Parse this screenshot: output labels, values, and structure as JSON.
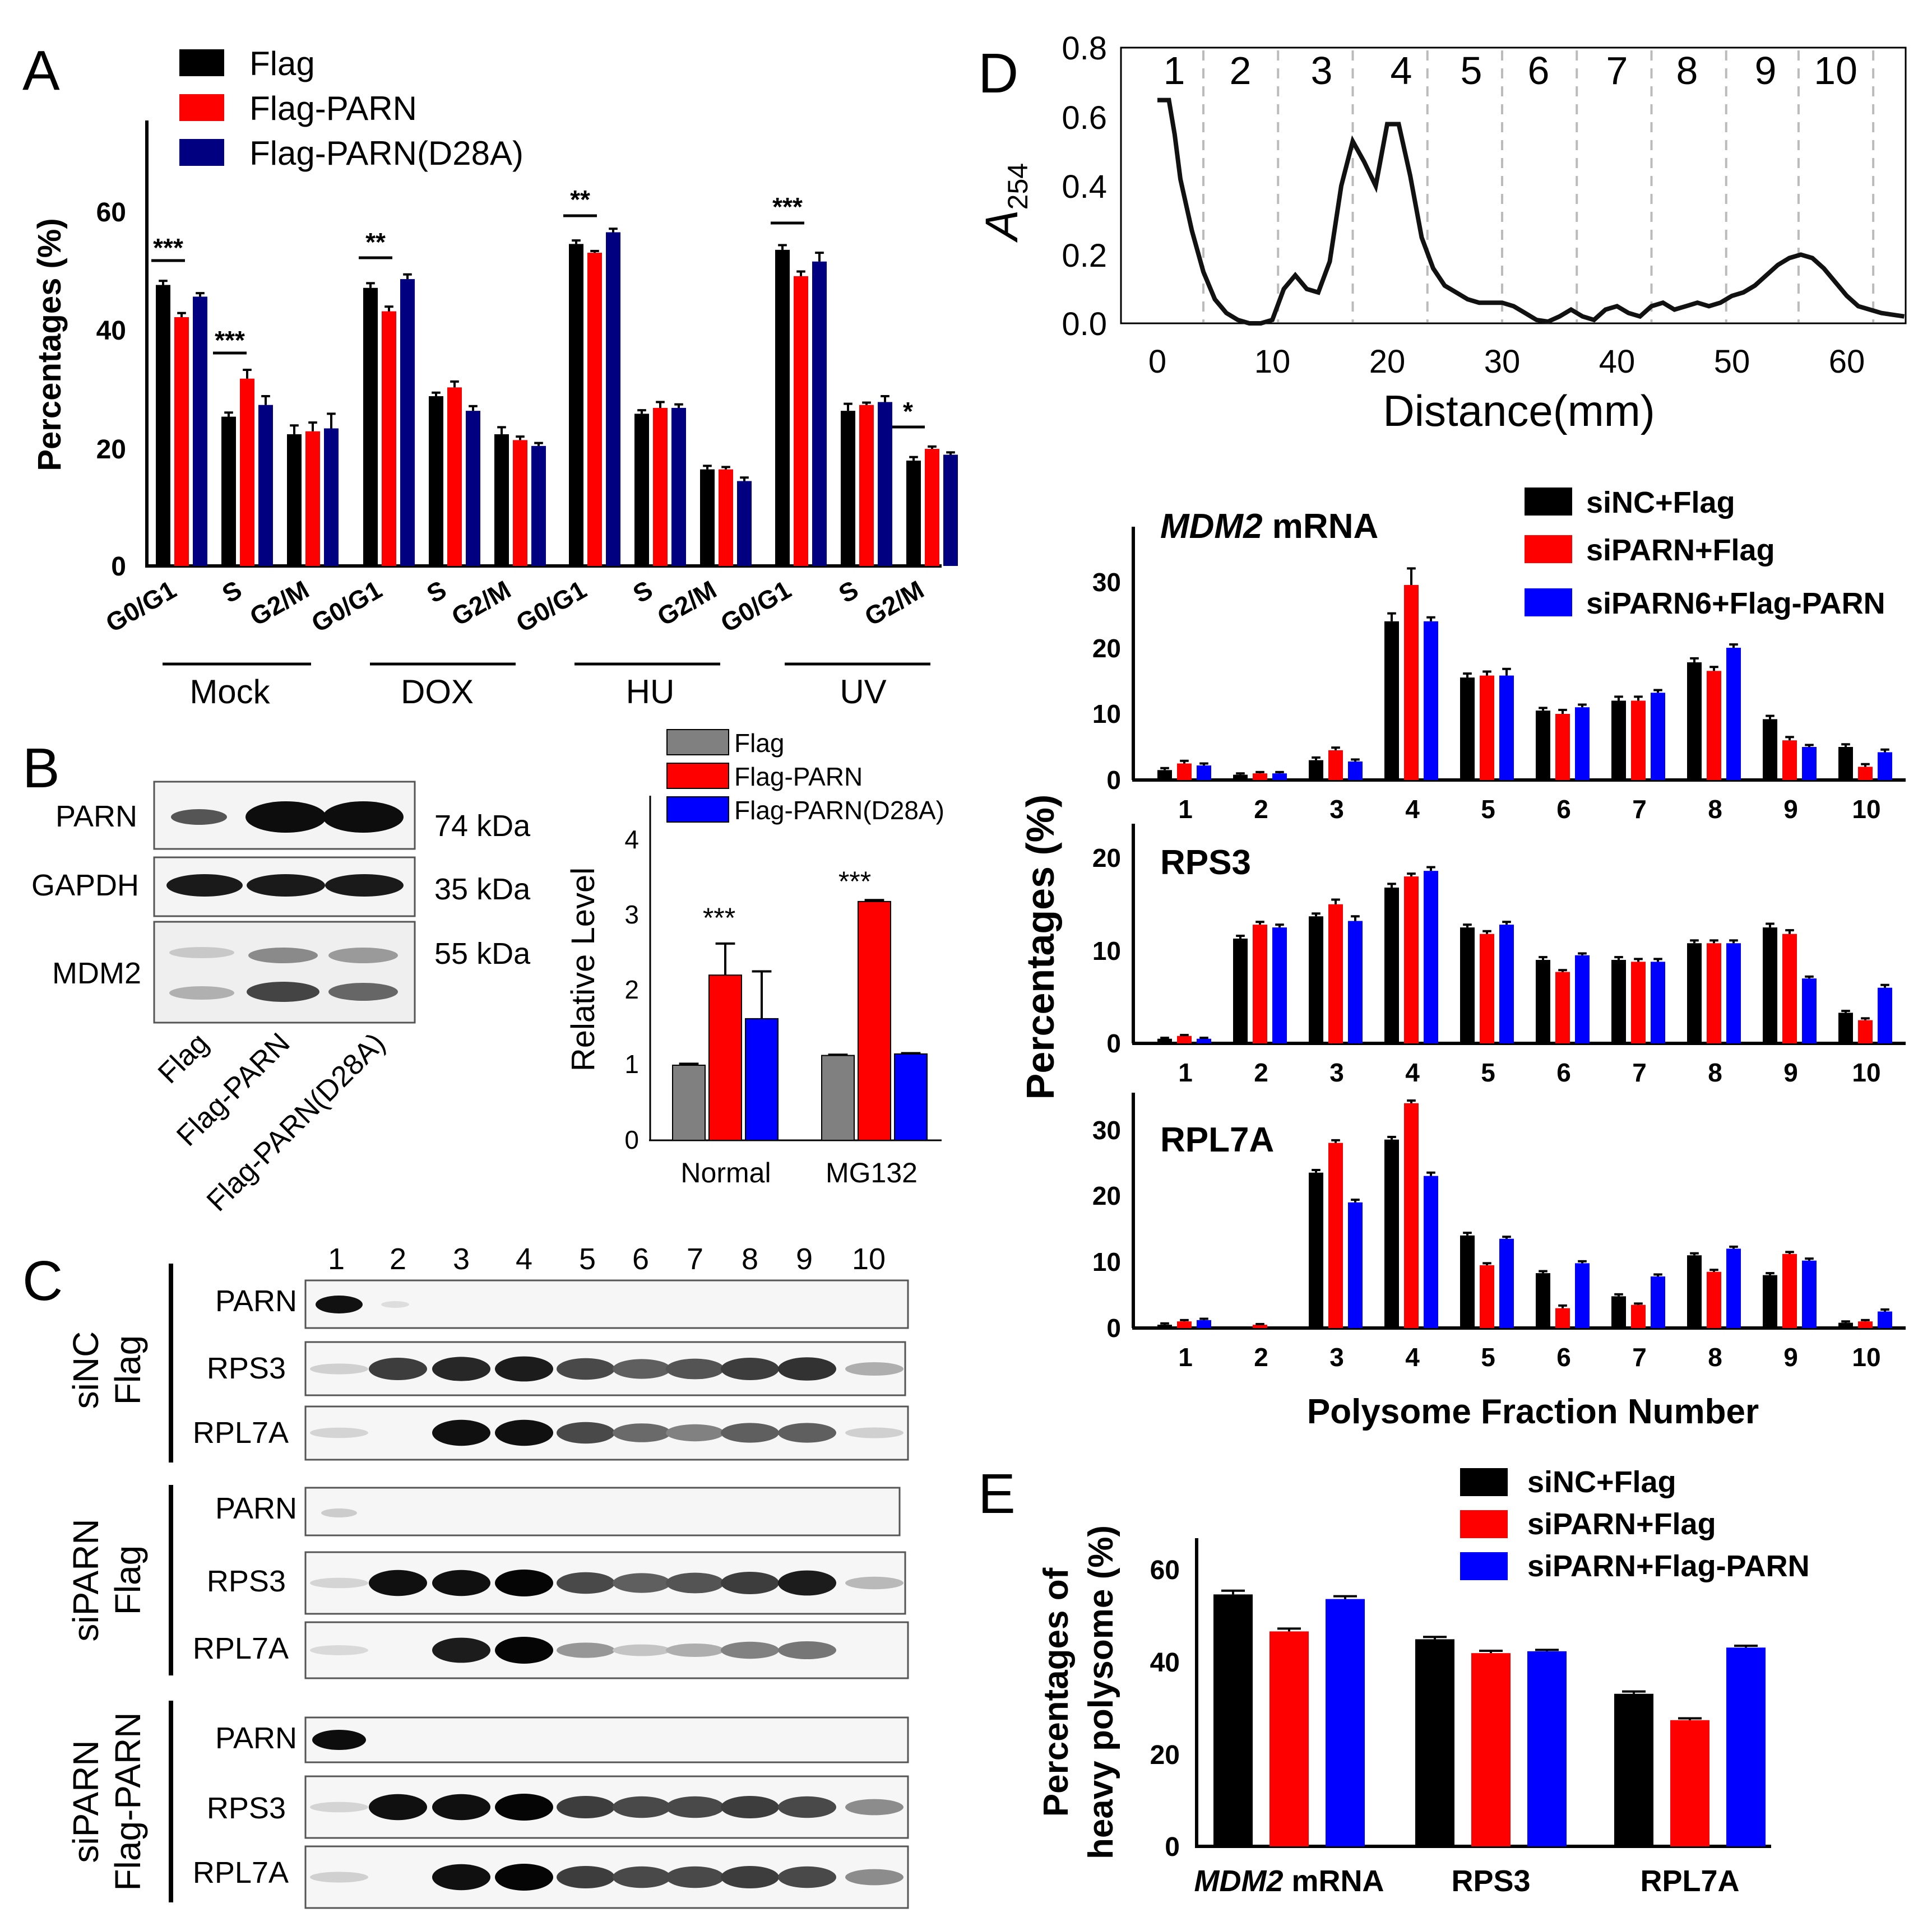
{
  "panels": {
    "A": {
      "letter": "A",
      "ylabel": "Percentages (%)",
      "yticks": [
        "0",
        "20",
        "40",
        "60"
      ],
      "ymax": 75,
      "legend": [
        "Flag",
        "Flag-PARN",
        "Flag-PARN(D28A)"
      ],
      "phases": [
        "G0/G1",
        "S",
        "G2/M"
      ],
      "groups": [
        "Mock",
        "DOX",
        "HU",
        "UV"
      ],
      "sig": {
        "mock_g1": "***",
        "mock_s": "***",
        "dox_g1": "**",
        "hu_g1": "**",
        "uv_g1": "***",
        "uv_g2m": "*"
      }
    },
    "B": {
      "letter": "B",
      "blot_rows": [
        "PARN",
        "GAPDH",
        "MDM2"
      ],
      "kda": [
        "74 kDa",
        "35 kDa",
        "55 kDa"
      ],
      "lanes": [
        "Flag",
        "Flag-PARN",
        "Flag-PARN(D28A)"
      ],
      "ylabel": "Relative Level",
      "yticks": [
        "0",
        "1",
        "2",
        "3",
        "4"
      ],
      "legend": [
        "Flag",
        "Flag-PARN",
        "Flag-PARN(D28A)"
      ],
      "sig": [
        "***",
        "***"
      ]
    },
    "C": {
      "letter": "C",
      "fractions": [
        "1",
        "2",
        "3",
        "4",
        "5",
        "6",
        "7",
        "8",
        "9",
        "10"
      ],
      "groups": [
        {
          "line1": "siNC",
          "line2": "Flag",
          "rows": [
            "PARN",
            "RPS3",
            "RPL7A"
          ]
        },
        {
          "line1": "siPARN",
          "line2": "Flag",
          "rows": [
            "PARN",
            "RPS3",
            "RPL7A"
          ]
        },
        {
          "line1": "siPARN",
          "line2": "Flag-PARN",
          "rows": [
            "PARN",
            "RPS3",
            "RPL7A"
          ]
        }
      ]
    },
    "D": {
      "letter": "D",
      "profile_ylabel_main": "A",
      "profile_ylabel_sub": "254",
      "profile_xlabel": "Distance(mm)",
      "profile_xticks": [
        "0",
        "10",
        "20",
        "30",
        "40",
        "50",
        "60"
      ],
      "profile_yticks": [
        "0.0",
        "0.2",
        "0.4",
        "0.6",
        "0.8"
      ],
      "fraction_labels": [
        "1",
        "2",
        "3",
        "4",
        "5",
        "6",
        "7",
        "8",
        "9",
        "10"
      ],
      "legend": [
        "siNC+Flag",
        "siPARN+Flag",
        "siPARN6+Flag-PARN"
      ],
      "ylabel": "Percentages (%)",
      "xlabel": "Polysome Fraction Number",
      "sub_titles": [
        {
          "italic": "MDM2",
          "rest": " mRNA"
        },
        {
          "italic": "",
          "rest": "RPS3"
        },
        {
          "italic": "",
          "rest": "RPL7A"
        }
      ],
      "xticks": [
        "1",
        "2",
        "3",
        "4",
        "5",
        "6",
        "7",
        "8",
        "9",
        "10"
      ],
      "sub_yticks": [
        [
          "0",
          "10",
          "20",
          "30"
        ],
        [
          "0",
          "10",
          "20"
        ],
        [
          "0",
          "10",
          "20",
          "30"
        ]
      ]
    },
    "E": {
      "letter": "E",
      "ylabel_line1": "Percentages of",
      "ylabel_line2": "heavy polysome (%)",
      "yticks": [
        "0",
        "20",
        "40",
        "60"
      ],
      "legend": [
        "siNC+Flag",
        "siPARN+Flag",
        "siPARN+Flag-PARN"
      ],
      "cat_italic": "MDM2",
      "cat_rest": " mRNA",
      "categories": [
        "RPS3",
        "RPL7A"
      ]
    }
  },
  "colors": {
    "black": "#000000",
    "red": "#ff0000",
    "navy": "#000080",
    "blue": "#0000ff",
    "gray": "#808080",
    "dash": "#bbbbbb"
  },
  "chart_data": [
    {
      "panel": "A",
      "type": "bar",
      "title": "",
      "ylabel": "Percentages (%)",
      "ylim": [
        0,
        75
      ],
      "groups": [
        "Mock",
        "DOX",
        "HU",
        "UV"
      ],
      "categories": [
        "G0/G1",
        "S",
        "G2/M"
      ],
      "series": [
        {
          "name": "Flag",
          "values": [
            [
              48,
              25.5,
              22.5
            ],
            [
              47.5,
              29,
              22.5
            ],
            [
              55,
              26,
              16.5
            ],
            [
              54,
              26.5,
              18
            ]
          ],
          "errors": [
            [
              0.7,
              0.7,
              1.5
            ],
            [
              0.8,
              0.6,
              1.2
            ],
            [
              0.6,
              0.6,
              0.6
            ],
            [
              0.8,
              1.2,
              0.6
            ]
          ]
        },
        {
          "name": "Flag-PARN",
          "values": [
            [
              42.5,
              32,
              23
            ],
            [
              43.5,
              30.5,
              21.5
            ],
            [
              53.5,
              27,
              16.5
            ],
            [
              49.5,
              27.5,
              20
            ]
          ],
          "errors": [
            [
              0.7,
              1.5,
              1.5
            ],
            [
              0.8,
              1,
              0.6
            ],
            [
              0.3,
              1,
              0.4
            ],
            [
              0.8,
              0.4,
              0.4
            ]
          ]
        },
        {
          "name": "Flag-PARN(D28A)",
          "values": [
            [
              46,
              27.5,
              23.5
            ],
            [
              49,
              26.5,
              20.5
            ],
            [
              57,
              27,
              14.5
            ],
            [
              52,
              28,
              19
            ]
          ],
          "errors": [
            [
              0.6,
              1.5,
              2.5
            ],
            [
              0.8,
              0.8,
              0.5
            ],
            [
              0.6,
              0.6,
              0.6
            ],
            [
              1.5,
              1,
              0.4
            ]
          ]
        }
      ]
    },
    {
      "panel": "B",
      "type": "bar",
      "title": "",
      "ylabel": "Relative Level",
      "ylim": [
        0,
        4.5
      ],
      "categories": [
        "Normal",
        "MG132"
      ],
      "series": [
        {
          "name": "Flag",
          "values": [
            1.0,
            1.13
          ],
          "errors": [
            0.02,
            0.01
          ]
        },
        {
          "name": "Flag-PARN",
          "values": [
            2.2,
            3.18
          ],
          "errors": [
            0.42,
            0.02
          ]
        },
        {
          "name": "Flag-PARN(D28A)",
          "values": [
            1.62,
            1.15
          ],
          "errors": [
            0.63,
            0.01
          ]
        }
      ]
    },
    {
      "panel": "D-profile",
      "type": "line",
      "xlabel": "Distance(mm)",
      "ylabel": "A254",
      "xlim": [
        -2,
        65
      ],
      "ylim": [
        0,
        0.8
      ],
      "fraction_boundaries": [
        4,
        10.5,
        17,
        23.5,
        30,
        36.5,
        43,
        49.5,
        55.8,
        62.3
      ],
      "x": [
        0,
        0.5,
        1,
        1.5,
        2,
        3,
        4,
        5,
        6,
        7,
        8,
        9,
        10,
        11,
        12,
        13,
        14,
        15,
        16,
        17,
        18,
        19,
        20,
        21,
        22,
        23,
        24,
        25,
        26,
        27,
        28,
        29,
        30,
        31,
        32,
        33,
        34,
        35,
        36,
        37,
        38,
        39,
        40,
        41,
        42,
        43,
        44,
        45,
        46,
        47,
        48,
        49,
        50,
        51,
        52,
        53,
        54,
        55,
        56,
        57,
        58,
        59,
        60,
        61,
        62,
        63,
        64,
        65
      ],
      "y": [
        0.65,
        0.65,
        0.65,
        0.55,
        0.42,
        0.27,
        0.15,
        0.07,
        0.03,
        0.01,
        0.0,
        0.0,
        0.01,
        0.1,
        0.14,
        0.1,
        0.09,
        0.18,
        0.4,
        0.53,
        0.47,
        0.4,
        0.58,
        0.58,
        0.43,
        0.25,
        0.16,
        0.11,
        0.09,
        0.07,
        0.06,
        0.06,
        0.06,
        0.05,
        0.03,
        0.01,
        0.005,
        0.02,
        0.04,
        0.02,
        0.01,
        0.04,
        0.05,
        0.03,
        0.02,
        0.05,
        0.06,
        0.04,
        0.05,
        0.06,
        0.05,
        0.06,
        0.08,
        0.09,
        0.11,
        0.14,
        0.17,
        0.19,
        0.2,
        0.19,
        0.16,
        0.12,
        0.08,
        0.05,
        0.04,
        0.03,
        0.025,
        0.02
      ]
    },
    {
      "panel": "D-MDM2",
      "type": "bar",
      "title": "MDM2 mRNA",
      "ylabel": "Percentages (%)",
      "ylim": [
        0,
        35
      ],
      "categories": [
        "1",
        "2",
        "3",
        "4",
        "5",
        "6",
        "7",
        "8",
        "9",
        "10"
      ],
      "series": [
        {
          "name": "siNC+Flag",
          "values": [
            1.5,
            0.8,
            3,
            24,
            15.5,
            10.5,
            12,
            17.8,
            9.2,
            5
          ],
          "errors": [
            0.3,
            0.2,
            0.4,
            1.2,
            0.6,
            0.4,
            0.6,
            0.6,
            0.5,
            0.4
          ]
        },
        {
          "name": "siPARN+Flag",
          "values": [
            2.5,
            1,
            4.5,
            29.5,
            15.8,
            10,
            12,
            16.5,
            6,
            2
          ],
          "errors": [
            0.4,
            0.2,
            0.4,
            2.5,
            0.6,
            0.6,
            0.6,
            0.6,
            0.5,
            0.4
          ]
        },
        {
          "name": "siPARN6+Flag-PARN",
          "values": [
            2.2,
            1,
            2.8,
            24,
            15.8,
            11,
            13.2,
            20,
            5,
            4.2
          ],
          "errors": [
            0.3,
            0.2,
            0.3,
            0.6,
            1,
            0.4,
            0.4,
            0.5,
            0.3,
            0.4
          ]
        }
      ]
    },
    {
      "panel": "D-RPS3",
      "type": "bar",
      "title": "RPS3",
      "ylabel": "Percentages (%)",
      "ylim": [
        0,
        25
      ],
      "categories": [
        "1",
        "2",
        "3",
        "4",
        "5",
        "6",
        "7",
        "8",
        "9",
        "10"
      ],
      "series": [
        {
          "name": "siNC+Flag",
          "values": [
            0.5,
            11.3,
            13.7,
            16.8,
            12.5,
            9,
            9,
            10.8,
            12.5,
            3.3
          ],
          "errors": [
            0.1,
            0.3,
            0.3,
            0.4,
            0.3,
            0.3,
            0.3,
            0.3,
            0.4,
            0.2
          ]
        },
        {
          "name": "siPARN+Flag",
          "values": [
            0.8,
            12.8,
            15,
            18,
            11.8,
            7.7,
            8.8,
            10.8,
            11.8,
            2.5
          ],
          "errors": [
            0.1,
            0.3,
            0.5,
            0.3,
            0.3,
            0.2,
            0.3,
            0.3,
            0.4,
            0.2
          ]
        },
        {
          "name": "siPARN6+Flag-PARN",
          "values": [
            0.5,
            12.5,
            13.2,
            18.6,
            12.8,
            9.5,
            8.8,
            10.8,
            7,
            6
          ],
          "errors": [
            0.1,
            0.3,
            0.5,
            0.4,
            0.3,
            0.2,
            0.3,
            0.3,
            0.2,
            0.3
          ]
        }
      ]
    },
    {
      "panel": "D-RPL7A",
      "type": "bar",
      "title": "RPL7A",
      "ylabel": "Percentages (%)",
      "ylim": [
        0,
        35
      ],
      "categories": [
        "1",
        "2",
        "3",
        "4",
        "5",
        "6",
        "7",
        "8",
        "9",
        "10"
      ],
      "series": [
        {
          "name": "siNC+Flag",
          "values": [
            0.5,
            0,
            23.5,
            28.5,
            14,
            8.3,
            4.8,
            11,
            8,
            0.8
          ],
          "errors": [
            0.2,
            0,
            0.4,
            0.4,
            0.4,
            0.3,
            0.3,
            0.3,
            0.3,
            0.2
          ]
        },
        {
          "name": "siPARN+Flag",
          "values": [
            1,
            0.5,
            28,
            34,
            9.5,
            3,
            3.5,
            8.5,
            11.2,
            1
          ],
          "errors": [
            0.2,
            0.1,
            0.4,
            0.4,
            0.3,
            0.4,
            0.2,
            0.3,
            0.3,
            0.2
          ]
        },
        {
          "name": "siPARN6+Flag-PARN",
          "values": [
            1.2,
            0,
            19,
            23,
            13.5,
            9.8,
            7.8,
            12,
            10.2,
            2.5
          ],
          "errors": [
            0.2,
            0,
            0.4,
            0.5,
            0.3,
            0.3,
            0.3,
            0.3,
            0.3,
            0.3
          ]
        }
      ]
    },
    {
      "panel": "E",
      "type": "bar",
      "title": "",
      "ylabel": "Percentages of heavy polysome (%)",
      "ylim": [
        0,
        65
      ],
      "categories": [
        "MDM2 mRNA",
        "RPS3",
        "RPL7A"
      ],
      "series": [
        {
          "name": "siNC+Flag",
          "values": [
            54.5,
            44.8,
            33
          ],
          "errors": [
            0.8,
            0.5,
            0.5
          ]
        },
        {
          "name": "siPARN+Flag",
          "values": [
            46.5,
            41.8,
            27.3
          ],
          "errors": [
            0.6,
            0.5,
            0.4
          ]
        },
        {
          "name": "siPARN+Flag-PARN",
          "values": [
            53.5,
            42.2,
            43
          ],
          "errors": [
            0.6,
            0.3,
            0.4
          ]
        }
      ]
    }
  ]
}
